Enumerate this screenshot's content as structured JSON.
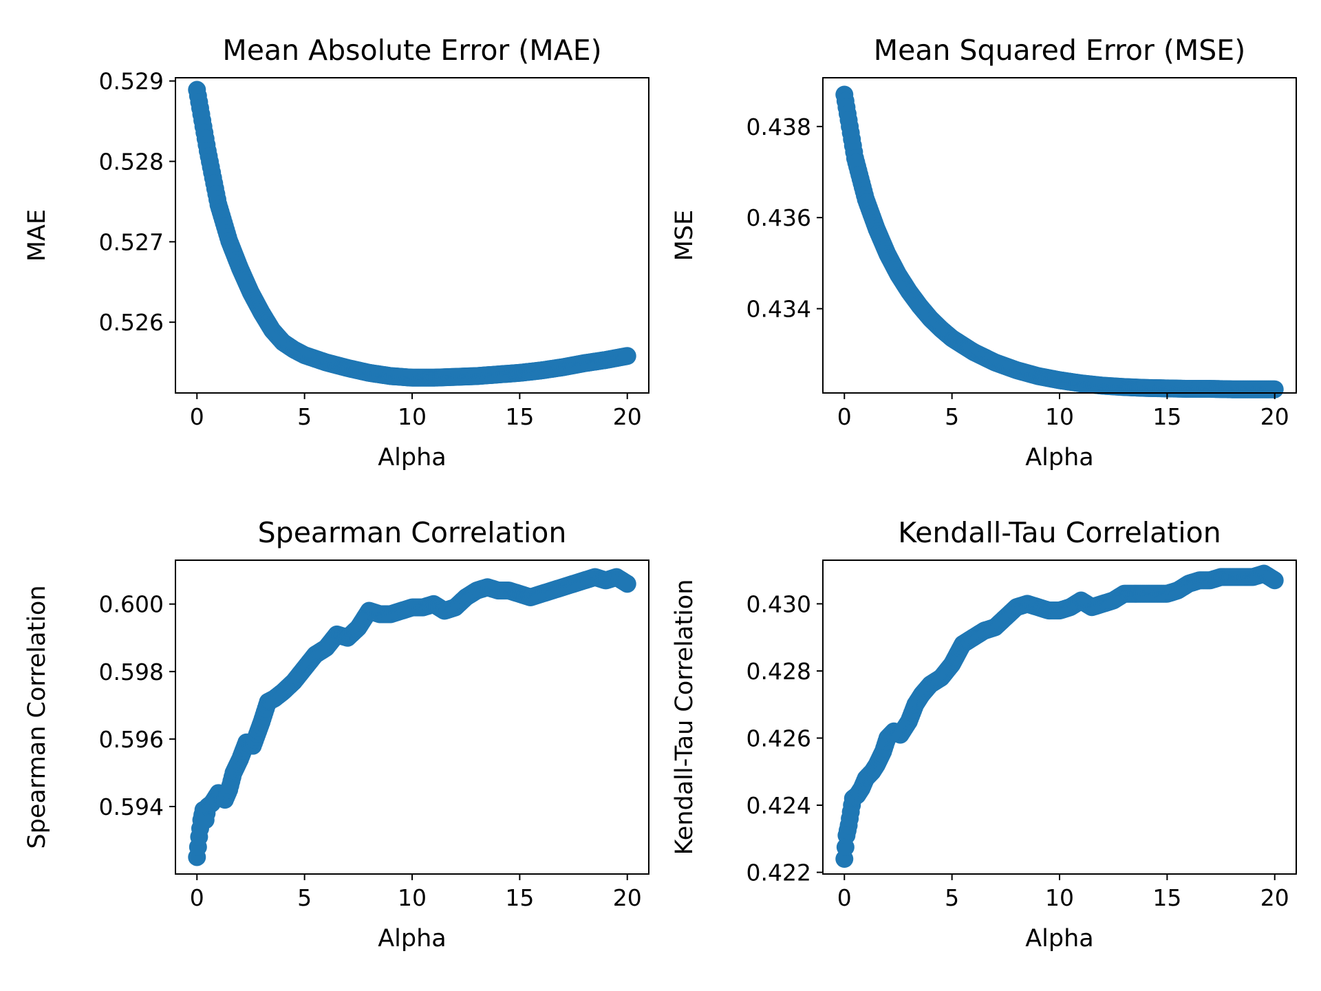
{
  "colors": {
    "marker": "#1f77b4",
    "axes": "#000000",
    "background": "#ffffff"
  },
  "chart_data": [
    {
      "type": "scatter",
      "title": "Mean Absolute Error (MAE)",
      "xlabel": "Alpha",
      "ylabel": "MAE",
      "xlim": [
        -1,
        21
      ],
      "ylim": [
        0.52512,
        0.52904
      ],
      "xticks": [
        0,
        5,
        10,
        15,
        20
      ],
      "xtick_labels": [
        "0",
        "5",
        "10",
        "15",
        "20"
      ],
      "yticks": [
        0.526,
        0.527,
        0.528,
        0.529
      ],
      "ytick_labels": [
        "0.526",
        "0.527",
        "0.528",
        "0.529"
      ],
      "grid": false,
      "series": [
        {
          "x": [
            0,
            0.5,
            1,
            1.5,
            2,
            2.5,
            3,
            3.5,
            4,
            4.5,
            5,
            6,
            7,
            8,
            9,
            10,
            11,
            12,
            13,
            14,
            15,
            16,
            17,
            18,
            19,
            20
          ],
          "y": [
            0.52889,
            0.52813,
            0.52746,
            0.52701,
            0.52667,
            0.52637,
            0.52612,
            0.5259,
            0.52575,
            0.52566,
            0.52559,
            0.5255,
            0.52543,
            0.52537,
            0.52533,
            0.52531,
            0.52531,
            0.52532,
            0.52533,
            0.52535,
            0.52537,
            0.5254,
            0.52544,
            0.52549,
            0.52553,
            0.52558
          ]
        }
      ]
    },
    {
      "type": "scatter",
      "title": "Mean Squared Error (MSE)",
      "xlabel": "Alpha",
      "ylabel": "MSE",
      "xlim": [
        -1,
        21
      ],
      "ylim": [
        0.43215,
        0.43907
      ],
      "xticks": [
        0,
        5,
        10,
        15,
        20
      ],
      "xtick_labels": [
        "0",
        "5",
        "10",
        "15",
        "20"
      ],
      "yticks": [
        0.434,
        0.436,
        0.438
      ],
      "ytick_labels": [
        "0.434",
        "0.436",
        "0.438"
      ],
      "grid": false,
      "series": [
        {
          "x": [
            0,
            0.5,
            1,
            1.5,
            2,
            2.5,
            3,
            3.5,
            4,
            4.5,
            5,
            6,
            7,
            8,
            9,
            10,
            11,
            12,
            13,
            14,
            15,
            16,
            17,
            18,
            19,
            20
          ],
          "y": [
            0.4387,
            0.4373,
            0.4364,
            0.43575,
            0.4352,
            0.43475,
            0.43438,
            0.43406,
            0.43378,
            0.43355,
            0.43335,
            0.43305,
            0.43282,
            0.43265,
            0.43252,
            0.43243,
            0.43236,
            0.43231,
            0.43228,
            0.43226,
            0.43225,
            0.43224,
            0.43224,
            0.43223,
            0.43223,
            0.43223
          ]
        }
      ]
    },
    {
      "type": "scatter",
      "title": "Spearman Correlation",
      "xlabel": "Alpha",
      "ylabel": "Spearman Correlation",
      "xlim": [
        -1,
        21
      ],
      "ylim": [
        0.592,
        0.6013
      ],
      "xticks": [
        0,
        5,
        10,
        15,
        20
      ],
      "xtick_labels": [
        "0",
        "5",
        "10",
        "15",
        "20"
      ],
      "yticks": [
        0.594,
        0.596,
        0.598,
        0.6
      ],
      "ytick_labels": [
        "0.594",
        "0.596",
        "0.598",
        "0.600"
      ],
      "grid": false,
      "series": [
        {
          "x": [
            0,
            0.1,
            0.2,
            0.3,
            0.4,
            0.5,
            0.7,
            1,
            1.3,
            1.5,
            1.7,
            2,
            2.3,
            2.6,
            3,
            3.3,
            3.6,
            4,
            4.5,
            5,
            5.5,
            6,
            6.5,
            7,
            7.5,
            8,
            8.5,
            9,
            9.5,
            10,
            10.5,
            11,
            11.5,
            12,
            12.5,
            13,
            13.5,
            14,
            14.5,
            15,
            15.5,
            16,
            16.5,
            17,
            17.5,
            18,
            18.5,
            19,
            19.5,
            20
          ],
          "y": [
            0.5925,
            0.5931,
            0.5936,
            0.5939,
            0.5936,
            0.594,
            0.5941,
            0.5944,
            0.5942,
            0.5945,
            0.595,
            0.5954,
            0.5959,
            0.5958,
            0.5965,
            0.5971,
            0.5972,
            0.5974,
            0.5977,
            0.5981,
            0.5985,
            0.5987,
            0.5991,
            0.599,
            0.5993,
            0.5998,
            0.5997,
            0.5997,
            0.5998,
            0.5999,
            0.5999,
            0.6,
            0.5998,
            0.5999,
            0.6002,
            0.6004,
            0.6005,
            0.6004,
            0.6004,
            0.6003,
            0.6002,
            0.6003,
            0.6004,
            0.6005,
            0.6006,
            0.6007,
            0.6008,
            0.6007,
            0.6008,
            0.6006
          ]
        }
      ]
    },
    {
      "type": "scatter",
      "title": "Kendall-Tau Correlation",
      "xlabel": "Alpha",
      "ylabel": "Kendall-Tau Correlation",
      "xlim": [
        -1,
        21
      ],
      "ylim": [
        0.42195,
        0.4313
      ],
      "xticks": [
        0,
        5,
        10,
        15,
        20
      ],
      "xtick_labels": [
        "0",
        "5",
        "10",
        "15",
        "20"
      ],
      "yticks": [
        0.422,
        0.424,
        0.426,
        0.428,
        0.43
      ],
      "ytick_labels": [
        "0.422",
        "0.424",
        "0.426",
        "0.428",
        "0.430"
      ],
      "grid": false,
      "series": [
        {
          "x": [
            0,
            0.1,
            0.2,
            0.3,
            0.4,
            0.6,
            0.8,
            1,
            1.3,
            1.5,
            1.8,
            2,
            2.3,
            2.6,
            3,
            3.3,
            3.6,
            4,
            4.5,
            5,
            5.5,
            6,
            6.5,
            7,
            7.5,
            8,
            8.5,
            9,
            9.5,
            10,
            10.5,
            11,
            11.5,
            12,
            12.5,
            13,
            13.5,
            14,
            14.5,
            15,
            15.5,
            16,
            16.5,
            17,
            17.5,
            18,
            18.5,
            19,
            19.5,
            20
          ],
          "y": [
            0.4224,
            0.4231,
            0.4234,
            0.4238,
            0.4242,
            0.4243,
            0.4245,
            0.4248,
            0.425,
            0.4252,
            0.4256,
            0.426,
            0.4262,
            0.4261,
            0.4265,
            0.427,
            0.4273,
            0.4276,
            0.4278,
            0.4282,
            0.4288,
            0.429,
            0.4292,
            0.4293,
            0.4296,
            0.4299,
            0.43,
            0.4299,
            0.4298,
            0.4298,
            0.4299,
            0.4301,
            0.4299,
            0.43,
            0.4301,
            0.4303,
            0.4303,
            0.4303,
            0.4303,
            0.4303,
            0.4304,
            0.4306,
            0.4307,
            0.4307,
            0.4308,
            0.4308,
            0.4308,
            0.4308,
            0.4309,
            0.4307
          ]
        }
      ]
    }
  ]
}
